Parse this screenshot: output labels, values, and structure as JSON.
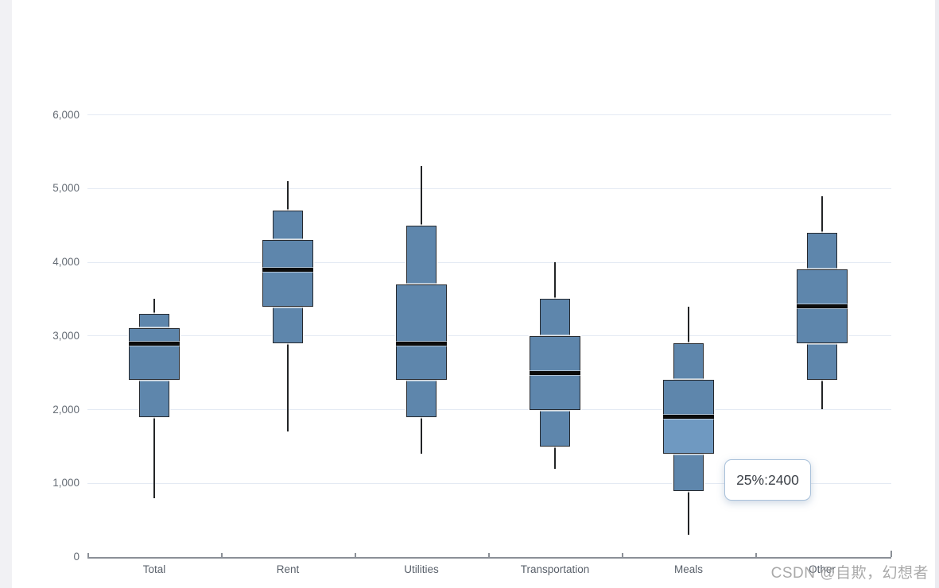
{
  "page": {
    "background": "#ffffff",
    "left_gutter_color": "#f1f1f4",
    "scrollbar_color": "#ececf1"
  },
  "watermark": {
    "text": "CSDN @自欺，幻想者",
    "color": "#9e9e9e"
  },
  "tooltip": {
    "text": "25%:2400",
    "border_color": "#a9c1da",
    "background": "#ffffff"
  },
  "colors": {
    "box_fill": "#5e86ac",
    "box_fill_highlight": "#6f99c1",
    "box_border": "#26292e",
    "median_line": "#0c0c0c",
    "whisker": "#222426",
    "gridline": "#e4eaf3",
    "axis_line": "#8b9097",
    "y_tick_label": "#666d76",
    "x_tick_label": "#5a616b"
  },
  "chart_data": {
    "type": "boxplot",
    "title": "",
    "xlabel": "",
    "ylabel": "",
    "grid": true,
    "legend": false,
    "categories": [
      "Total",
      "Rent",
      "Utilities",
      "Transportation",
      "Meals",
      "Other"
    ],
    "stat_keys": [
      "min",
      "p10",
      "p25",
      "median",
      "p75",
      "p90",
      "max"
    ],
    "boxes": [
      {
        "category": "Total",
        "min": 800,
        "p10": 1900,
        "p25": 2400,
        "median": 2900,
        "p75": 3100,
        "p90": 3300,
        "max": 3500,
        "hover_highlight_lower_mid": false
      },
      {
        "category": "Rent",
        "min": 1700,
        "p10": 2900,
        "p25": 3400,
        "median": 3900,
        "p75": 4300,
        "p90": 4700,
        "max": 5100,
        "hover_highlight_lower_mid": false
      },
      {
        "category": "Utilities",
        "min": 1400,
        "p10": 1900,
        "p25": 2400,
        "median": 2900,
        "p75": 3700,
        "p90": 4500,
        "max": 5300,
        "hover_highlight_lower_mid": false
      },
      {
        "category": "Transportation",
        "min": 1200,
        "p10": 1500,
        "p25": 2000,
        "median": 2500,
        "p75": 3000,
        "p90": 3500,
        "max": 4000,
        "hover_highlight_lower_mid": false
      },
      {
        "category": "Meals",
        "min": 300,
        "p10": 900,
        "p25": 1400,
        "median": 1900,
        "p75": 2400,
        "p90": 2900,
        "max": 3400,
        "hover_highlight_lower_mid": true
      },
      {
        "category": "Other",
        "min": 2000,
        "p10": 2400,
        "p25": 2900,
        "median": 3400,
        "p75": 3900,
        "p90": 4400,
        "max": 4900,
        "hover_highlight_lower_mid": false
      }
    ],
    "y_axis": {
      "min": 0,
      "max": 6000,
      "tick_interval": 1000,
      "tick_labels": [
        "0",
        "1,000",
        "2,000",
        "3,000",
        "4,000",
        "5,000",
        "6,000"
      ]
    }
  }
}
